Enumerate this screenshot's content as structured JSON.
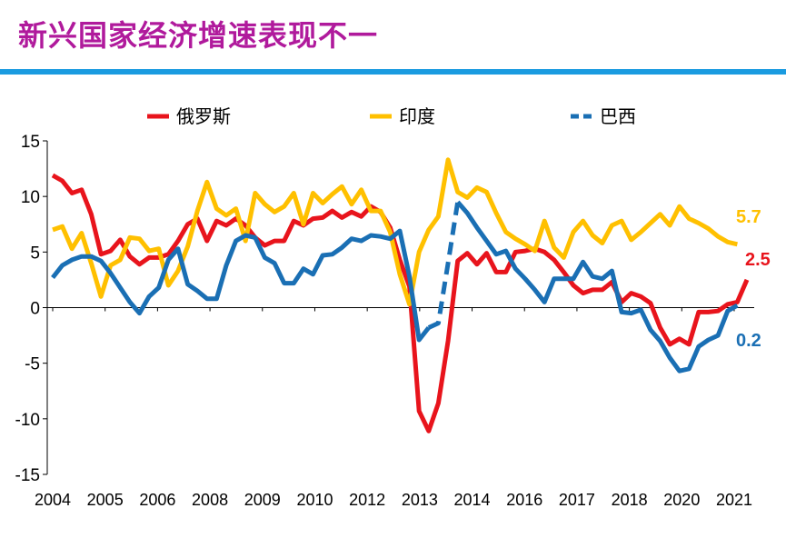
{
  "page": {
    "title": "新兴国家经济增速表现不一",
    "accent_color": "#1a9be0",
    "title_color": "#b01a9c"
  },
  "chart_data": {
    "type": "line",
    "title": "",
    "xlabel": "",
    "ylabel": "",
    "ylim": [
      -15,
      15
    ],
    "yticks": [
      15,
      10,
      5,
      0,
      -5,
      -10,
      -15
    ],
    "xlim": [
      2004.0,
      2021.5
    ],
    "xtick_labels": [
      "2004",
      "2005",
      "2006",
      "2008",
      "2009",
      "2010",
      "2012",
      "2013",
      "2014",
      "2016",
      "2017",
      "2018",
      "2020",
      "2021"
    ],
    "grid": false,
    "legend_position": "top",
    "series": [
      {
        "name": "俄罗斯",
        "color": "#e8141c",
        "dash": "solid",
        "end_label": "2.5",
        "points": [
          [
            2004.0,
            11.9
          ],
          [
            2004.25,
            11.4
          ],
          [
            2004.5,
            10.3
          ],
          [
            2004.75,
            10.6
          ],
          [
            2005.0,
            8.4
          ],
          [
            2005.25,
            4.8
          ],
          [
            2005.5,
            5.1
          ],
          [
            2005.75,
            6.1
          ],
          [
            2006.0,
            4.6
          ],
          [
            2006.25,
            3.9
          ],
          [
            2006.5,
            4.5
          ],
          [
            2006.75,
            4.5
          ],
          [
            2007.0,
            4.8
          ],
          [
            2007.25,
            6.0
          ],
          [
            2007.5,
            7.5
          ],
          [
            2007.75,
            8.0
          ],
          [
            2008.0,
            6.0
          ],
          [
            2008.25,
            7.8
          ],
          [
            2008.5,
            7.4
          ],
          [
            2008.75,
            8.0
          ],
          [
            2009.0,
            7.4
          ],
          [
            2009.25,
            6.3
          ],
          [
            2009.5,
            5.6
          ],
          [
            2009.75,
            6.0
          ],
          [
            2010.0,
            6.0
          ],
          [
            2010.25,
            7.8
          ],
          [
            2010.5,
            7.4
          ],
          [
            2010.75,
            8.0
          ],
          [
            2011.0,
            8.1
          ],
          [
            2011.25,
            8.7
          ],
          [
            2011.5,
            8.1
          ],
          [
            2011.75,
            8.6
          ],
          [
            2012.0,
            8.2
          ],
          [
            2012.25,
            9.1
          ],
          [
            2012.5,
            8.6
          ],
          [
            2012.75,
            7.2
          ],
          [
            2013.0,
            4.3
          ],
          [
            2013.25,
            1.9
          ],
          [
            2013.5,
            -9.3
          ],
          [
            2013.75,
            -11.1
          ],
          [
            2014.0,
            -8.6
          ],
          [
            2014.25,
            -3.0
          ],
          [
            2014.5,
            4.2
          ],
          [
            2014.75,
            4.9
          ],
          [
            2015.0,
            3.9
          ],
          [
            2015.25,
            4.9
          ],
          [
            2015.5,
            3.2
          ],
          [
            2015.75,
            3.2
          ],
          [
            2016.0,
            5.0
          ],
          [
            2016.25,
            5.1
          ],
          [
            2016.5,
            5.3
          ],
          [
            2016.75,
            5.0
          ],
          [
            2017.0,
            4.3
          ],
          [
            2017.25,
            3.2
          ],
          [
            2017.5,
            2.0
          ],
          [
            2017.75,
            1.3
          ],
          [
            2018.0,
            1.6
          ],
          [
            2018.25,
            1.6
          ],
          [
            2018.5,
            2.3
          ],
          [
            2018.75,
            0.5
          ],
          [
            2019.0,
            1.3
          ],
          [
            2019.25,
            1.0
          ],
          [
            2019.5,
            0.4
          ],
          [
            2019.75,
            -1.8
          ],
          [
            2020.0,
            -3.3
          ],
          [
            2020.25,
            -2.8
          ],
          [
            2020.5,
            -3.3
          ],
          [
            2020.75,
            -0.4
          ],
          [
            2021.0,
            -0.4
          ],
          [
            2021.25,
            -0.3
          ],
          [
            2021.5,
            0.3
          ],
          [
            2021.75,
            0.5
          ],
          [
            2022.0,
            2.5
          ]
        ]
      },
      {
        "name": "印度",
        "color": "#ffc000",
        "dash": "solid",
        "end_label": "5.7",
        "points": [
          [
            2004.0,
            7.0
          ],
          [
            2004.25,
            7.3
          ],
          [
            2004.5,
            5.3
          ],
          [
            2004.75,
            6.7
          ],
          [
            2005.0,
            4.0
          ],
          [
            2005.25,
            1.0
          ],
          [
            2005.5,
            3.8
          ],
          [
            2005.75,
            4.3
          ],
          [
            2006.0,
            6.3
          ],
          [
            2006.25,
            6.2
          ],
          [
            2006.5,
            5.1
          ],
          [
            2006.75,
            5.3
          ],
          [
            2007.0,
            2.0
          ],
          [
            2007.25,
            3.3
          ],
          [
            2007.5,
            5.5
          ],
          [
            2007.75,
            8.7
          ],
          [
            2008.0,
            11.3
          ],
          [
            2008.25,
            8.9
          ],
          [
            2008.5,
            8.3
          ],
          [
            2008.75,
            8.9
          ],
          [
            2009.0,
            6.0
          ],
          [
            2009.25,
            10.3
          ],
          [
            2009.5,
            9.3
          ],
          [
            2009.75,
            8.6
          ],
          [
            2010.0,
            9.1
          ],
          [
            2010.25,
            10.3
          ],
          [
            2010.5,
            7.5
          ],
          [
            2010.75,
            10.3
          ],
          [
            2011.0,
            9.4
          ],
          [
            2011.25,
            10.2
          ],
          [
            2011.5,
            10.9
          ],
          [
            2011.75,
            9.3
          ],
          [
            2012.0,
            10.6
          ],
          [
            2012.25,
            8.7
          ],
          [
            2012.5,
            8.7
          ],
          [
            2012.75,
            6.8
          ],
          [
            2013.0,
            3.0
          ],
          [
            2013.25,
            0.3
          ],
          [
            2013.5,
            5.0
          ],
          [
            2013.75,
            7.0
          ],
          [
            2014.0,
            8.2
          ],
          [
            2014.25,
            13.3
          ],
          [
            2014.5,
            10.4
          ],
          [
            2014.75,
            9.9
          ],
          [
            2015.0,
            10.8
          ],
          [
            2015.25,
            10.4
          ],
          [
            2015.5,
            8.5
          ],
          [
            2015.75,
            6.8
          ],
          [
            2016.0,
            6.2
          ],
          [
            2016.25,
            5.7
          ],
          [
            2016.5,
            5.1
          ],
          [
            2016.75,
            7.8
          ],
          [
            2017.0,
            5.4
          ],
          [
            2017.25,
            4.5
          ],
          [
            2017.5,
            6.8
          ],
          [
            2017.75,
            7.8
          ],
          [
            2018.0,
            6.5
          ],
          [
            2018.25,
            5.8
          ],
          [
            2018.5,
            7.4
          ],
          [
            2018.75,
            7.8
          ],
          [
            2019.0,
            6.1
          ],
          [
            2019.25,
            6.8
          ],
          [
            2019.5,
            7.6
          ],
          [
            2019.75,
            8.4
          ],
          [
            2020.0,
            7.4
          ],
          [
            2020.25,
            9.1
          ],
          [
            2020.5,
            8.0
          ],
          [
            2020.75,
            7.6
          ],
          [
            2021.0,
            7.1
          ],
          [
            2021.25,
            6.4
          ],
          [
            2021.5,
            5.9
          ],
          [
            2021.75,
            5.7
          ]
        ]
      },
      {
        "name": "巴西",
        "color": "#1a6fb4",
        "dash": "mixed",
        "end_label": "0.2",
        "points": [
          [
            2004.0,
            2.7
          ],
          [
            2004.25,
            3.8
          ],
          [
            2004.5,
            4.3
          ],
          [
            2004.75,
            4.6
          ],
          [
            2005.0,
            4.6
          ],
          [
            2005.25,
            4.2
          ],
          [
            2005.5,
            3.1
          ],
          [
            2005.75,
            1.8
          ],
          [
            2006.0,
            0.5
          ],
          [
            2006.25,
            -0.5
          ],
          [
            2006.5,
            1.0
          ],
          [
            2006.75,
            1.8
          ],
          [
            2007.0,
            4.3
          ],
          [
            2007.25,
            5.3
          ],
          [
            2007.5,
            2.1
          ],
          [
            2007.75,
            1.5
          ],
          [
            2008.0,
            0.8
          ],
          [
            2008.25,
            0.8
          ],
          [
            2008.5,
            3.8
          ],
          [
            2008.75,
            6.0
          ],
          [
            2009.0,
            6.5
          ],
          [
            2009.25,
            6.3
          ],
          [
            2009.5,
            4.5
          ],
          [
            2009.75,
            4.0
          ],
          [
            2010.0,
            2.2
          ],
          [
            2010.25,
            2.2
          ],
          [
            2010.5,
            3.5
          ],
          [
            2010.75,
            3.0
          ],
          [
            2011.0,
            4.7
          ],
          [
            2011.25,
            4.8
          ],
          [
            2011.5,
            5.4
          ],
          [
            2011.75,
            6.2
          ],
          [
            2012.0,
            6.0
          ],
          [
            2012.25,
            6.5
          ],
          [
            2012.5,
            6.4
          ],
          [
            2012.75,
            6.2
          ],
          [
            2013.0,
            6.9
          ],
          [
            2013.25,
            2.8
          ],
          [
            2013.5,
            -2.9
          ],
          [
            2013.75,
            -1.8
          ],
          [
            2014.0,
            -1.4
          ],
          [
            2014.25,
            4.0
          ],
          [
            2014.5,
            9.5
          ],
          [
            2014.75,
            8.5
          ],
          [
            2015.0,
            7.2
          ],
          [
            2015.25,
            6.0
          ],
          [
            2015.5,
            4.8
          ],
          [
            2015.75,
            5.1
          ],
          [
            2016.0,
            3.5
          ],
          [
            2016.25,
            2.6
          ],
          [
            2016.5,
            1.6
          ],
          [
            2016.75,
            0.5
          ],
          [
            2017.0,
            2.6
          ],
          [
            2017.25,
            2.6
          ],
          [
            2017.5,
            2.6
          ],
          [
            2017.75,
            4.1
          ],
          [
            2018.0,
            2.8
          ],
          [
            2018.25,
            2.6
          ],
          [
            2018.5,
            3.3
          ],
          [
            2018.75,
            -0.4
          ],
          [
            2019.0,
            -0.5
          ],
          [
            2019.25,
            -0.2
          ],
          [
            2019.5,
            -2.0
          ],
          [
            2019.75,
            -3.0
          ],
          [
            2020.0,
            -4.5
          ],
          [
            2020.25,
            -5.7
          ],
          [
            2020.5,
            -5.5
          ],
          [
            2020.75,
            -3.5
          ],
          [
            2021.0,
            -2.9
          ],
          [
            2021.25,
            -2.5
          ],
          [
            2021.5,
            -0.3
          ],
          [
            2021.75,
            0.2
          ]
        ],
        "dashed_range": [
          2013.75,
          2014.5
        ]
      }
    ]
  }
}
